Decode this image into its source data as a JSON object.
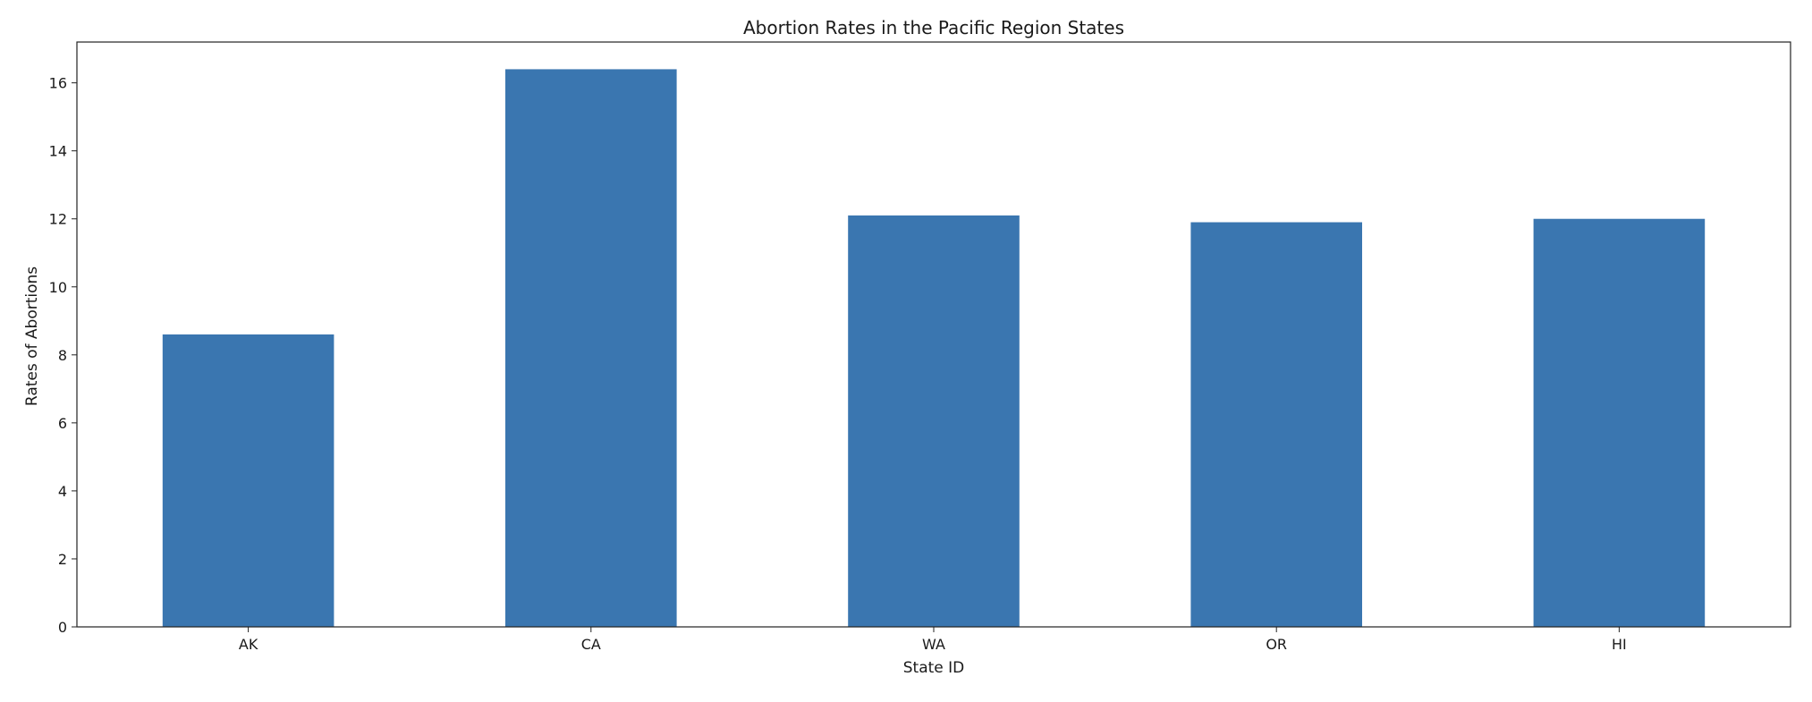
{
  "chart_data": {
    "type": "bar",
    "title": "Abortion Rates in the Pacific Region States",
    "xlabel": "State ID",
    "ylabel": "Rates of Abortions",
    "categories": [
      "AK",
      "CA",
      "WA",
      "OR",
      "HI"
    ],
    "values": [
      8.6,
      16.4,
      12.1,
      11.9,
      12.0
    ],
    "ylim": [
      0,
      17.2
    ],
    "yticks": [
      0,
      2,
      4,
      6,
      8,
      10,
      12,
      14,
      16
    ],
    "grid": false,
    "bar_color": "#3a76b0",
    "axis_color": "#222222"
  }
}
